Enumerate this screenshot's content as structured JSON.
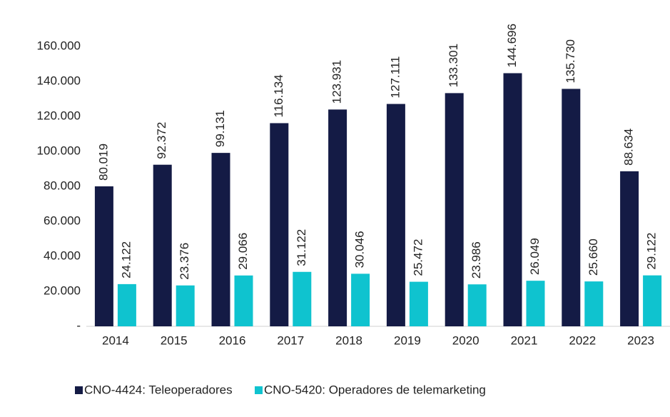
{
  "chart_data": {
    "type": "bar",
    "categories": [
      "2014",
      "2015",
      "2016",
      "2017",
      "2018",
      "2019",
      "2020",
      "2021",
      "2022",
      "2023"
    ],
    "series": [
      {
        "name": "CNO-4424: Teleoperadores",
        "color": "#141b45",
        "values": [
          80019,
          92372,
          99131,
          116134,
          123931,
          127111,
          133301,
          144696,
          135730,
          88634
        ],
        "value_labels": [
          "80.019",
          "92.372",
          "99.131",
          "116.134",
          "123.931",
          "127.111",
          "133.301",
          "144.696",
          "135.730",
          "88.634"
        ]
      },
      {
        "name": "CNO-5420: Operadores de telemarketing",
        "color": "#0fc3cf",
        "values": [
          24122,
          23376,
          29066,
          31122,
          30046,
          25472,
          23986,
          26049,
          25660,
          29122
        ],
        "value_labels": [
          "24.122",
          "23.376",
          "29.066",
          "31.122",
          "30.046",
          "25.472",
          "23.986",
          "26.049",
          "25.660",
          "29.122"
        ]
      }
    ],
    "ylim": [
      0,
      160000
    ],
    "yticks": [
      {
        "value": 0,
        "label": "-"
      },
      {
        "value": 20000,
        "label": "20.000"
      },
      {
        "value": 40000,
        "label": "40.000"
      },
      {
        "value": 60000,
        "label": "60.000"
      },
      {
        "value": 80000,
        "label": "80.000"
      },
      {
        "value": 100000,
        "label": "100.000"
      },
      {
        "value": 120000,
        "label": "120.000"
      },
      {
        "value": 140000,
        "label": "140.000"
      },
      {
        "value": 160000,
        "label": "160.000"
      }
    ],
    "legend": "bottom"
  }
}
